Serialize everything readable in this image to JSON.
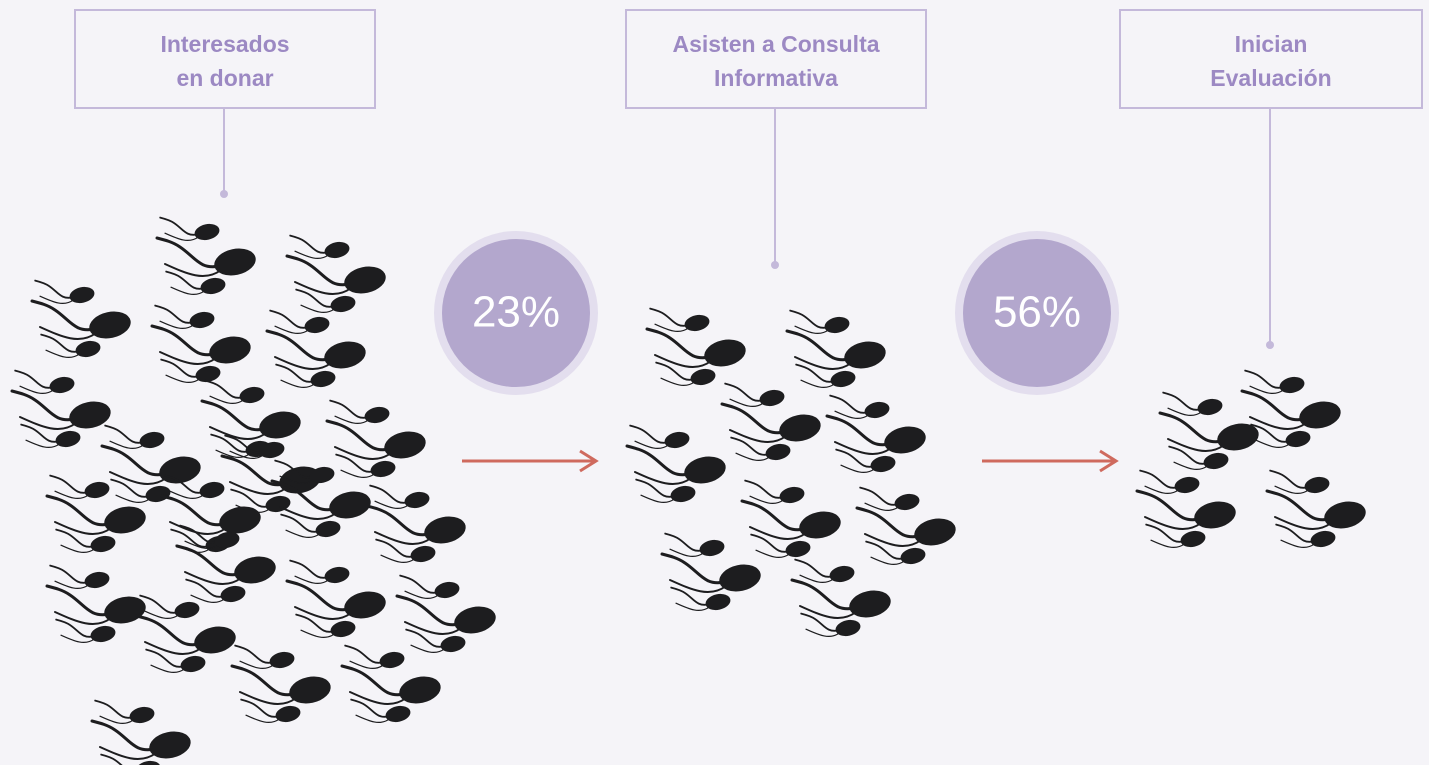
{
  "stages": [
    {
      "label_line1": "Interesados",
      "label_line2": "en donar"
    },
    {
      "label_line1": "Asisten a Consulta",
      "label_line2": "Informativa"
    },
    {
      "label_line1": "Inician",
      "label_line2": "Evaluación"
    }
  ],
  "conversions": [
    "23%",
    "56%"
  ]
}
